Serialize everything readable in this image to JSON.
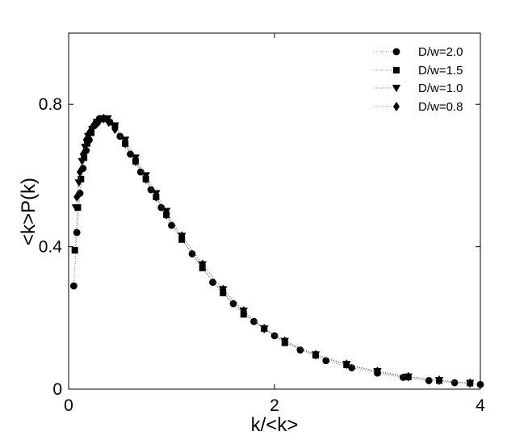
{
  "chart_data": {
    "type": "scatter",
    "title": "",
    "xlabel": "k/<k>",
    "ylabel": "<k>P(k)",
    "xlim": [
      0,
      4
    ],
    "ylim": [
      0,
      1.0
    ],
    "xticks": [
      0,
      2,
      4
    ],
    "xtick_labels": [
      "0",
      "2",
      "4"
    ],
    "yticks": [
      0,
      0.4,
      0.8
    ],
    "ytick_labels": [
      "0",
      "0.4",
      "0.8"
    ],
    "grid": false,
    "legend_position": "top-right",
    "marker_color": "#000000",
    "series": [
      {
        "name": "D/w=2.0",
        "marker": "circle",
        "x": [
          0.05,
          0.08,
          0.11,
          0.14,
          0.17,
          0.2,
          0.25,
          0.3,
          0.35,
          0.4,
          0.5,
          0.6,
          0.7,
          0.8,
          0.9,
          1.0,
          1.2,
          1.4,
          1.6,
          1.8,
          2.0,
          2.25,
          2.5,
          2.75,
          3.0,
          3.25,
          3.5,
          3.75,
          4.0
        ],
        "y": [
          0.29,
          0.44,
          0.55,
          0.62,
          0.67,
          0.7,
          0.74,
          0.76,
          0.76,
          0.75,
          0.71,
          0.66,
          0.61,
          0.56,
          0.51,
          0.46,
          0.38,
          0.3,
          0.24,
          0.19,
          0.15,
          0.11,
          0.08,
          0.06,
          0.045,
          0.033,
          0.024,
          0.018,
          0.013
        ]
      },
      {
        "name": "D/w=1.5",
        "marker": "square",
        "x": [
          0.06,
          0.09,
          0.12,
          0.15,
          0.18,
          0.22,
          0.27,
          0.32,
          0.37,
          0.45,
          0.55,
          0.65,
          0.75,
          0.85,
          0.95,
          1.1,
          1.3,
          1.5,
          1.7,
          1.9,
          2.1,
          2.4,
          2.7,
          3.0,
          3.3,
          3.6,
          3.9
        ],
        "y": [
          0.39,
          0.51,
          0.59,
          0.65,
          0.69,
          0.72,
          0.75,
          0.76,
          0.76,
          0.74,
          0.69,
          0.64,
          0.59,
          0.54,
          0.49,
          0.42,
          0.34,
          0.27,
          0.21,
          0.17,
          0.13,
          0.095,
          0.068,
          0.048,
          0.034,
          0.024,
          0.017
        ]
      },
      {
        "name": "D/w=1.0",
        "marker": "triangle-down",
        "x": [
          0.07,
          0.1,
          0.13,
          0.16,
          0.19,
          0.23,
          0.28,
          0.33,
          0.38,
          0.45,
          0.55,
          0.65,
          0.75,
          0.85,
          0.95,
          1.1,
          1.3,
          1.5,
          1.7,
          1.9,
          2.1,
          2.4,
          2.7,
          3.0,
          3.3,
          3.6,
          3.9
        ],
        "y": [
          0.51,
          0.58,
          0.64,
          0.68,
          0.71,
          0.73,
          0.75,
          0.76,
          0.76,
          0.74,
          0.7,
          0.65,
          0.6,
          0.55,
          0.5,
          0.43,
          0.35,
          0.28,
          0.22,
          0.17,
          0.135,
          0.097,
          0.07,
          0.05,
          0.035,
          0.025,
          0.017
        ]
      },
      {
        "name": "D/w=0.8",
        "marker": "diamond",
        "x": [
          0.08,
          0.11,
          0.14,
          0.17,
          0.2,
          0.24,
          0.29,
          0.34,
          0.39,
          0.45,
          0.55,
          0.65,
          0.75,
          0.85,
          0.95,
          1.1,
          1.3,
          1.5,
          1.7,
          1.9,
          2.1,
          2.4,
          2.7,
          3.0,
          3.3,
          3.6,
          3.9
        ],
        "y": [
          0.54,
          0.61,
          0.66,
          0.7,
          0.72,
          0.74,
          0.75,
          0.76,
          0.75,
          0.73,
          0.69,
          0.64,
          0.59,
          0.54,
          0.49,
          0.43,
          0.35,
          0.28,
          0.22,
          0.17,
          0.135,
          0.097,
          0.07,
          0.05,
          0.035,
          0.025,
          0.017
        ]
      }
    ]
  }
}
